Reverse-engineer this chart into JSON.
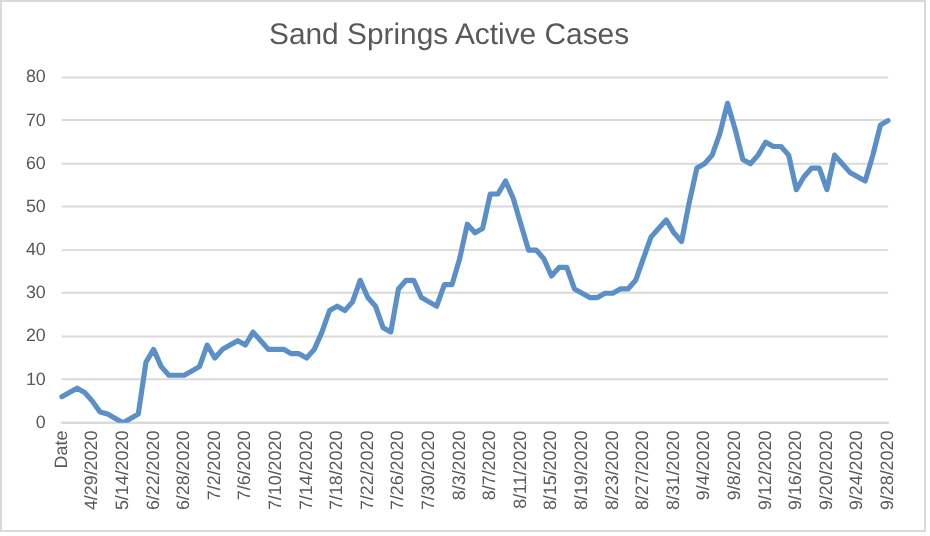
{
  "chart_data": {
    "type": "line",
    "title": "Sand Springs Active Cases",
    "categories": [
      "Date",
      null,
      null,
      null,
      "4/29/2020",
      null,
      null,
      null,
      "5/14/2020",
      null,
      null,
      null,
      "6/22/2020",
      null,
      null,
      null,
      "6/28/2020",
      null,
      null,
      null,
      "7/2/2020",
      null,
      null,
      null,
      "7/6/2020",
      null,
      null,
      null,
      "7/10/2020",
      null,
      null,
      null,
      "7/14/2020",
      null,
      null,
      null,
      "7/18/2020",
      null,
      null,
      null,
      "7/22/2020",
      null,
      null,
      null,
      "7/26/2020",
      null,
      null,
      null,
      "7/30/2020",
      null,
      null,
      null,
      "8/3/2020",
      null,
      null,
      null,
      "8/7/2020",
      null,
      null,
      null,
      "8/11/2020",
      null,
      null,
      null,
      "8/15/2020",
      null,
      null,
      null,
      "8/19/2020",
      null,
      null,
      null,
      "8/23/2020",
      null,
      null,
      null,
      "8/27/2020",
      null,
      null,
      null,
      "8/31/2020",
      null,
      null,
      null,
      "9/4/2020",
      null,
      null,
      null,
      "9/8/2020",
      null,
      null,
      null,
      "9/12/2020",
      null,
      null,
      null,
      "9/16/2020",
      null,
      null,
      null,
      "9/20/2020",
      null,
      null,
      null,
      "9/24/2020",
      null,
      null,
      null,
      "9/28/2020"
    ],
    "series": [
      {
        "color": "#5b8fc7",
        "values": [
          6,
          7,
          8,
          7,
          5,
          2.5,
          2,
          1,
          0,
          1,
          2,
          14,
          17,
          13,
          11,
          11,
          11,
          12,
          13,
          18,
          15,
          17,
          18,
          19,
          18,
          21,
          19,
          17,
          17,
          17,
          16,
          16,
          15,
          17,
          21,
          26,
          27,
          26,
          28,
          33,
          29,
          27,
          22,
          21,
          31,
          33,
          33,
          29,
          28,
          27,
          32,
          32,
          38,
          46,
          44,
          45,
          53,
          53,
          56,
          52,
          46,
          40,
          40,
          38,
          34,
          36,
          36,
          31,
          30,
          29,
          29,
          30,
          30,
          31,
          31,
          33,
          38,
          43,
          45,
          47,
          44,
          42,
          51,
          59,
          60,
          62,
          67,
          74,
          68,
          61,
          60,
          62,
          65,
          64,
          64,
          62,
          54,
          57,
          59,
          59,
          54,
          62,
          60,
          58,
          57,
          56,
          62,
          69,
          70
        ]
      }
    ],
    "ylim": [
      0,
      80
    ],
    "yticks": [
      0,
      10,
      20,
      30,
      40,
      50,
      60,
      70,
      80
    ],
    "grid": "y",
    "legend": false,
    "marker": "none",
    "line_style": "solid"
  }
}
